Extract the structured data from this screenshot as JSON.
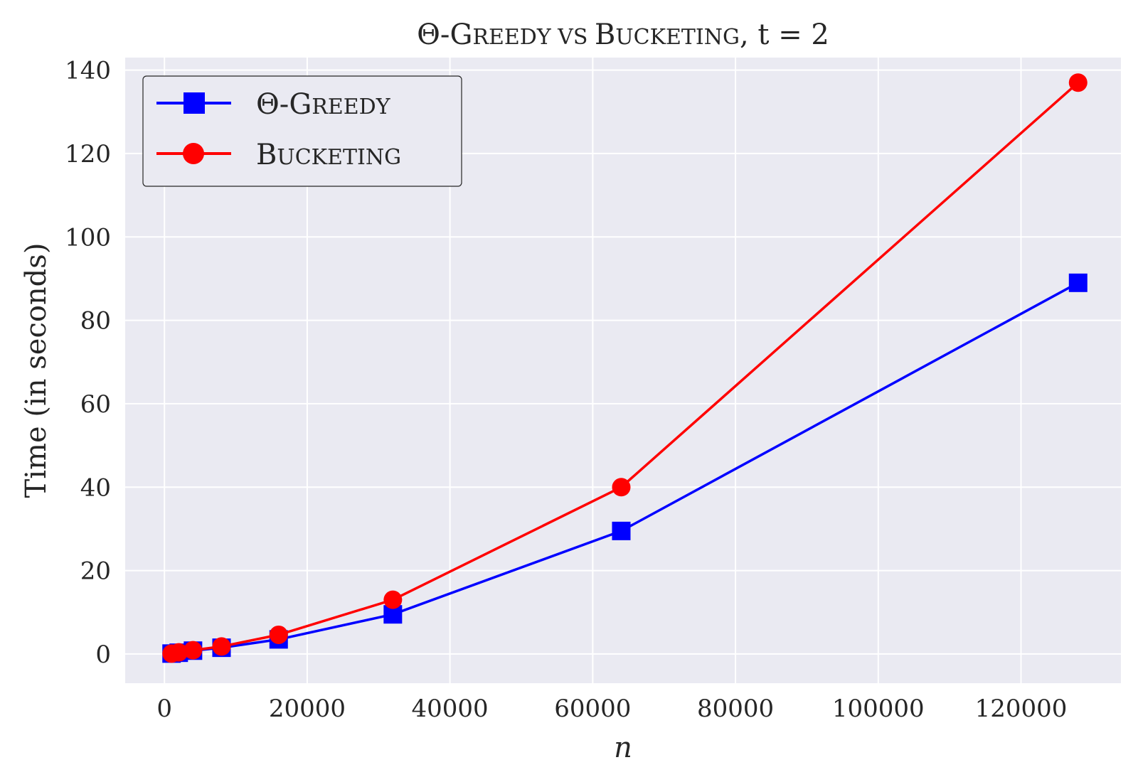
{
  "chart_data": {
    "type": "line",
    "title": {
      "theta": "Θ",
      "greedy_initial": "-G",
      "greedy_rest": "REEDY",
      "vs": " VS ",
      "bucketing_initial": "B",
      "bucketing_rest": "UCKETING",
      "param": ", t = 2"
    },
    "xlabel": "n",
    "ylabel": "Time (in seconds)",
    "xlim": [
      -5500,
      134000
    ],
    "ylim": [
      -7,
      143
    ],
    "x_ticks": [
      0,
      20000,
      40000,
      60000,
      80000,
      100000,
      120000
    ],
    "y_ticks": [
      0,
      20,
      40,
      60,
      80,
      100,
      120,
      140
    ],
    "grid": true,
    "legend_position": "top-left",
    "series": [
      {
        "name": "Θ-Greedy",
        "legend_label": {
          "theta": "Θ",
          "initial": "-G",
          "rest": "REEDY"
        },
        "color": "#0000ff",
        "marker": "square",
        "x": [
          1000,
          2000,
          4000,
          8000,
          16000,
          32000,
          64000,
          128000
        ],
        "y": [
          0.1,
          0.3,
          0.8,
          1.5,
          3.5,
          9.5,
          29.5,
          89
        ]
      },
      {
        "name": "Bucketing",
        "legend_label": {
          "theta": "",
          "initial": "B",
          "rest": "UCKETING"
        },
        "color": "#ff0000",
        "marker": "circle",
        "x": [
          1000,
          2000,
          4000,
          8000,
          16000,
          32000,
          64000,
          128000
        ],
        "y": [
          0.1,
          0.4,
          0.9,
          1.8,
          4.6,
          13,
          40,
          137
        ]
      }
    ]
  },
  "colors": {
    "plot_background": "#eaeaf2",
    "grid": "#ffffff",
    "text": "#262626"
  }
}
